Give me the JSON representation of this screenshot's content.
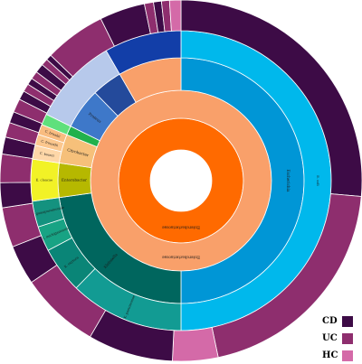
{
  "chart_data": {
    "type": "sunburst",
    "colors": {
      "outer_CD": "#3d0b46",
      "outer_UC": "#8e2e6e",
      "outer_HC": "#d46aa8",
      "separator": "#ffffff"
    },
    "legend": [
      {
        "label": "CD",
        "color": "#3d0b46"
      },
      {
        "label": "UC",
        "color": "#8e2e6e"
      },
      {
        "label": "HC",
        "color": "#d46aa8"
      }
    ],
    "rings": [
      {
        "level": "family",
        "segments": [
          {
            "label": "Enterobacteriaceae",
            "value": 100,
            "color": "#ff6a00"
          }
        ]
      },
      {
        "level": "genus",
        "segments": [
          {
            "label": "Enterobacteriaceae",
            "value": 100,
            "color": "#f9a06a"
          }
        ]
      },
      {
        "level": "genus_detail",
        "segments": [
          {
            "label": "Escherichia",
            "value": 50.0,
            "color": "#0096d6"
          },
          {
            "label": "Klebsiella",
            "value": 22.8,
            "color": "#00665e"
          },
          {
            "label": "Enterobacter",
            "value": 4.5,
            "color": "#b6b800"
          },
          {
            "label": "Citrobacter",
            "value": 3.8,
            "color": "#f6c07a"
          },
          {
            "label": "",
            "value": 1.2,
            "color": "#22b14c"
          },
          {
            "label": "Proteus",
            "value": 5.4,
            "color": "#3e78c9"
          },
          {
            "label": "",
            "value": 4.0,
            "color": "#244a9b"
          },
          {
            "label": "",
            "value": 8.3,
            "color": "#f9a06a"
          }
        ]
      },
      {
        "level": "species",
        "segments": [
          {
            "label": "E. coli",
            "value": 50.0,
            "color": "#00b8ec"
          },
          {
            "label": "K. pneumoniae",
            "value": 12.3,
            "color": "#129b93"
          },
          {
            "label": "K. oxytoca",
            "value": 5.0,
            "color": "#0a8577"
          },
          {
            "label": "K. michiganensis",
            "value": 2.7,
            "color": "#18a384"
          },
          {
            "label": "K. quasipneumoniae",
            "value": 2.8,
            "color": "#14927f"
          },
          {
            "label": "E. cloacae",
            "value": 4.5,
            "color": "#f2f226"
          },
          {
            "label": "C. koseri",
            "value": 1.5,
            "color": "#fed7a8"
          },
          {
            "label": "C. freundii",
            "value": 1.2,
            "color": "#fbc78e"
          },
          {
            "label": "C. braakii",
            "value": 1.1,
            "color": "#f9bc80"
          },
          {
            "label": "",
            "value": 1.2,
            "color": "#5fe07c"
          },
          {
            "label": "",
            "value": 9.4,
            "color": "#b7c9eb"
          },
          {
            "label": "",
            "value": 8.3,
            "color": "#123ea8"
          }
        ]
      },
      {
        "level": "cohort",
        "segments": [
          {
            "label": "",
            "value": 26.0,
            "color": "#3d0b46"
          },
          {
            "label": "",
            "value": 20.0,
            "color": "#8e2e6e"
          },
          {
            "label": "",
            "value": 4.0,
            "color": "#d46aa8"
          },
          {
            "label": "",
            "value": 7.5,
            "color": "#3d0b46"
          },
          {
            "label": "",
            "value": 7.0,
            "color": "#8e2e6e"
          },
          {
            "label": "",
            "value": 3.5,
            "color": "#3d0b46"
          },
          {
            "label": "",
            "value": 3.5,
            "color": "#8e2e6e"
          },
          {
            "label": "",
            "value": 2.2,
            "color": "#3d0b46"
          },
          {
            "label": "",
            "value": 2.5,
            "color": "#8e2e6e"
          },
          {
            "label": "",
            "value": 1.5,
            "color": "#3d0b46"
          },
          {
            "label": "",
            "value": 1.3,
            "color": "#8e2e6e"
          },
          {
            "label": "",
            "value": 1.0,
            "color": "#3d0b46"
          },
          {
            "label": "",
            "value": 1.2,
            "color": "#8e2e6e"
          },
          {
            "label": "",
            "value": 0.8,
            "color": "#3d0b46"
          },
          {
            "label": "",
            "value": 0.7,
            "color": "#8e2e6e"
          },
          {
            "label": "",
            "value": 0.6,
            "color": "#3d0b46"
          },
          {
            "label": "",
            "value": 0.7,
            "color": "#8e2e6e"
          },
          {
            "label": "",
            "value": 0.8,
            "color": "#3d0b46"
          },
          {
            "label": "",
            "value": 0.6,
            "color": "#8e2e6e"
          },
          {
            "label": "",
            "value": 0.5,
            "color": "#3d0b46"
          },
          {
            "label": "",
            "value": 5.4,
            "color": "#8e2e6e"
          },
          {
            "label": "",
            "value": 4.0,
            "color": "#3d0b46"
          },
          {
            "label": "",
            "value": 0.8,
            "color": "#8e2e6e"
          },
          {
            "label": "",
            "value": 0.7,
            "color": "#3d0b46"
          },
          {
            "label": "",
            "value": 0.7,
            "color": "#8e2e6e"
          },
          {
            "label": "",
            "value": 1.0,
            "color": "#d46aa8"
          }
        ]
      }
    ]
  }
}
